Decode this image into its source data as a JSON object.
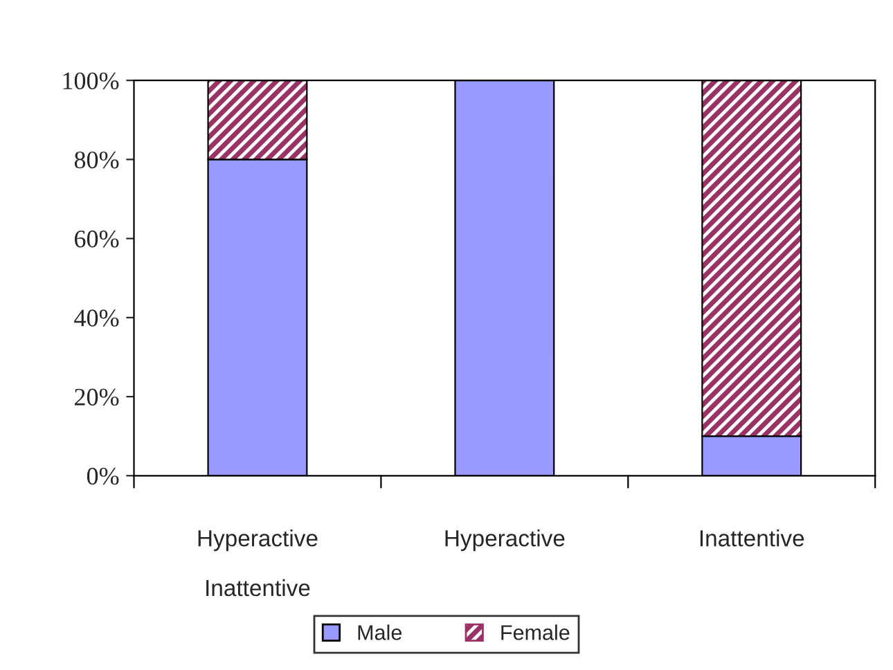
{
  "chart_data": {
    "type": "bar",
    "stacked": true,
    "categories": [
      "Hyperactive Inattentive",
      "Hyperactive",
      "Inattentive"
    ],
    "series": [
      {
        "name": "Male",
        "color": "#9999ff",
        "values": [
          80,
          100,
          10
        ]
      },
      {
        "name": "Female",
        "color": "#993366",
        "values": [
          20,
          0,
          90
        ]
      }
    ],
    "ylim": [
      0,
      100
    ],
    "yticks": [
      {
        "value": 0,
        "label": "0%"
      },
      {
        "value": 20,
        "label": "20%"
      },
      {
        "value": 40,
        "label": "40%"
      },
      {
        "value": 60,
        "label": "60%"
      },
      {
        "value": 80,
        "label": "80%"
      },
      {
        "value": 100,
        "label": "100%"
      }
    ],
    "grid": false,
    "legend": "bottom"
  }
}
